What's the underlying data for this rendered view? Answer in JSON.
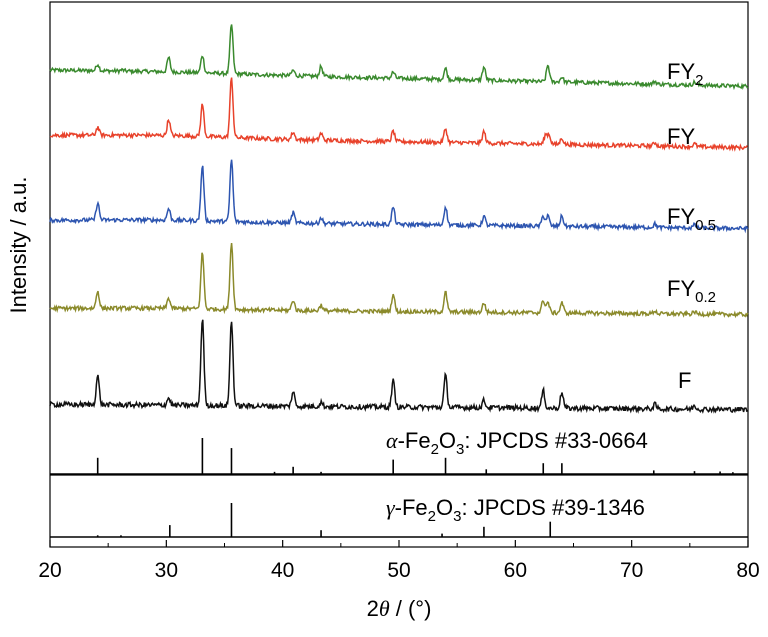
{
  "chart_data": {
    "type": "line",
    "xlabel": "2θ / (°)",
    "ylabel": "Intensity / a.u.",
    "xlim": [
      20,
      80
    ],
    "xticks": [
      20,
      30,
      40,
      50,
      60,
      70,
      80
    ],
    "grid": false,
    "series": [
      {
        "name": "FY2",
        "color": "#3a8a2e",
        "baseline": 0.7,
        "peaks": [
          [
            24.1,
            0.6
          ],
          [
            26.2,
            0.1
          ],
          [
            30.2,
            1.3
          ],
          [
            33.1,
            1.6
          ],
          [
            35.6,
            4.5
          ],
          [
            40.9,
            0.5
          ],
          [
            43.3,
            0.9
          ],
          [
            49.5,
            0.55
          ],
          [
            54.0,
            1.0
          ],
          [
            57.3,
            1.2
          ],
          [
            62.8,
            1.5
          ],
          [
            64.0,
            0.45
          ],
          [
            72.0,
            0.25
          ],
          [
            75.4,
            0.25
          ]
        ]
      },
      {
        "name": "FY",
        "color": "#e8422b",
        "baseline": 1.25,
        "peaks": [
          [
            24.1,
            0.7
          ],
          [
            30.2,
            1.4
          ],
          [
            33.1,
            2.8
          ],
          [
            35.6,
            5.2
          ],
          [
            40.9,
            0.65
          ],
          [
            43.3,
            0.6
          ],
          [
            49.5,
            0.9
          ],
          [
            54.0,
            1.2
          ],
          [
            57.3,
            1.0
          ],
          [
            62.6,
            0.8
          ],
          [
            62.9,
            0.8
          ],
          [
            64.0,
            0.55
          ],
          [
            72.0,
            0.3
          ],
          [
            75.4,
            0.25
          ]
        ]
      },
      {
        "name": "FY0.5",
        "color": "#2d55b0",
        "baseline": 1.0,
        "peaks": [
          [
            24.1,
            1.5
          ],
          [
            30.2,
            1.0
          ],
          [
            33.1,
            4.8
          ],
          [
            35.6,
            5.4
          ],
          [
            40.9,
            0.9
          ],
          [
            43.3,
            0.5
          ],
          [
            49.5,
            1.5
          ],
          [
            54.0,
            1.6
          ],
          [
            57.3,
            0.8
          ],
          [
            62.4,
            0.9
          ],
          [
            62.8,
            0.9
          ],
          [
            64.0,
            0.9
          ],
          [
            72.0,
            0.3
          ],
          [
            75.4,
            0.25
          ]
        ]
      },
      {
        "name": "FY0.2",
        "color": "#8b8a2b",
        "baseline": 0.65,
        "peaks": [
          [
            24.1,
            1.5
          ],
          [
            30.2,
            0.9
          ],
          [
            33.1,
            4.9
          ],
          [
            35.6,
            5.8
          ],
          [
            40.9,
            0.9
          ],
          [
            43.3,
            0.5
          ],
          [
            49.5,
            1.5
          ],
          [
            54.0,
            1.7
          ],
          [
            57.3,
            0.8
          ],
          [
            62.4,
            1.1
          ],
          [
            62.8,
            0.9
          ],
          [
            64.0,
            0.9
          ],
          [
            72.0,
            0.25
          ],
          [
            75.4,
            0.2
          ]
        ]
      },
      {
        "name": "F",
        "color": "#111111",
        "baseline": 0.1,
        "peaks": [
          [
            24.1,
            2.0
          ],
          [
            30.2,
            0.5
          ],
          [
            33.1,
            6.0
          ],
          [
            35.6,
            5.9
          ],
          [
            40.9,
            1.0
          ],
          [
            43.3,
            0.3
          ],
          [
            49.5,
            1.8
          ],
          [
            54.0,
            2.2
          ],
          [
            57.3,
            0.5
          ],
          [
            62.4,
            1.2
          ],
          [
            64.0,
            1.1
          ],
          [
            72.0,
            0.3
          ],
          [
            75.4,
            0.25
          ]
        ]
      }
    ],
    "legend_labels": [
      {
        "base": "FY",
        "sub": "2"
      },
      {
        "base": "FY",
        "sub": ""
      },
      {
        "base": "FY",
        "sub": "0.5"
      },
      {
        "base": "FY",
        "sub": "0.2"
      },
      {
        "base": "F",
        "sub": ""
      }
    ],
    "references": [
      {
        "label": {
          "greek": "α",
          "part1": "-Fe",
          "sub1": "2",
          "part2": "O",
          "sub2": "3",
          "rest": ": JPCDS #33-0664"
        },
        "lines": [
          [
            24.1,
            0.45
          ],
          [
            33.1,
            1.0
          ],
          [
            35.6,
            0.72
          ],
          [
            39.3,
            0.06
          ],
          [
            40.9,
            0.2
          ],
          [
            43.3,
            0.06
          ],
          [
            49.5,
            0.4
          ],
          [
            54.0,
            0.45
          ],
          [
            57.5,
            0.13
          ],
          [
            62.4,
            0.3
          ],
          [
            64.0,
            0.3
          ],
          [
            71.9,
            0.1
          ],
          [
            75.4,
            0.08
          ],
          [
            77.6,
            0.07
          ],
          [
            78.7,
            0.05
          ]
        ]
      },
      {
        "label": {
          "greek": "γ",
          "part1": "-Fe",
          "sub1": "2",
          "part2": "O",
          "sub2": "3",
          "rest": ": JPCDS #39-1346"
        },
        "lines": [
          [
            24.1,
            0.05
          ],
          [
            26.1,
            0.05
          ],
          [
            30.3,
            0.35
          ],
          [
            35.6,
            1.0
          ],
          [
            43.3,
            0.2
          ],
          [
            53.7,
            0.1
          ],
          [
            57.3,
            0.3
          ],
          [
            63.0,
            0.45
          ]
        ]
      }
    ]
  }
}
